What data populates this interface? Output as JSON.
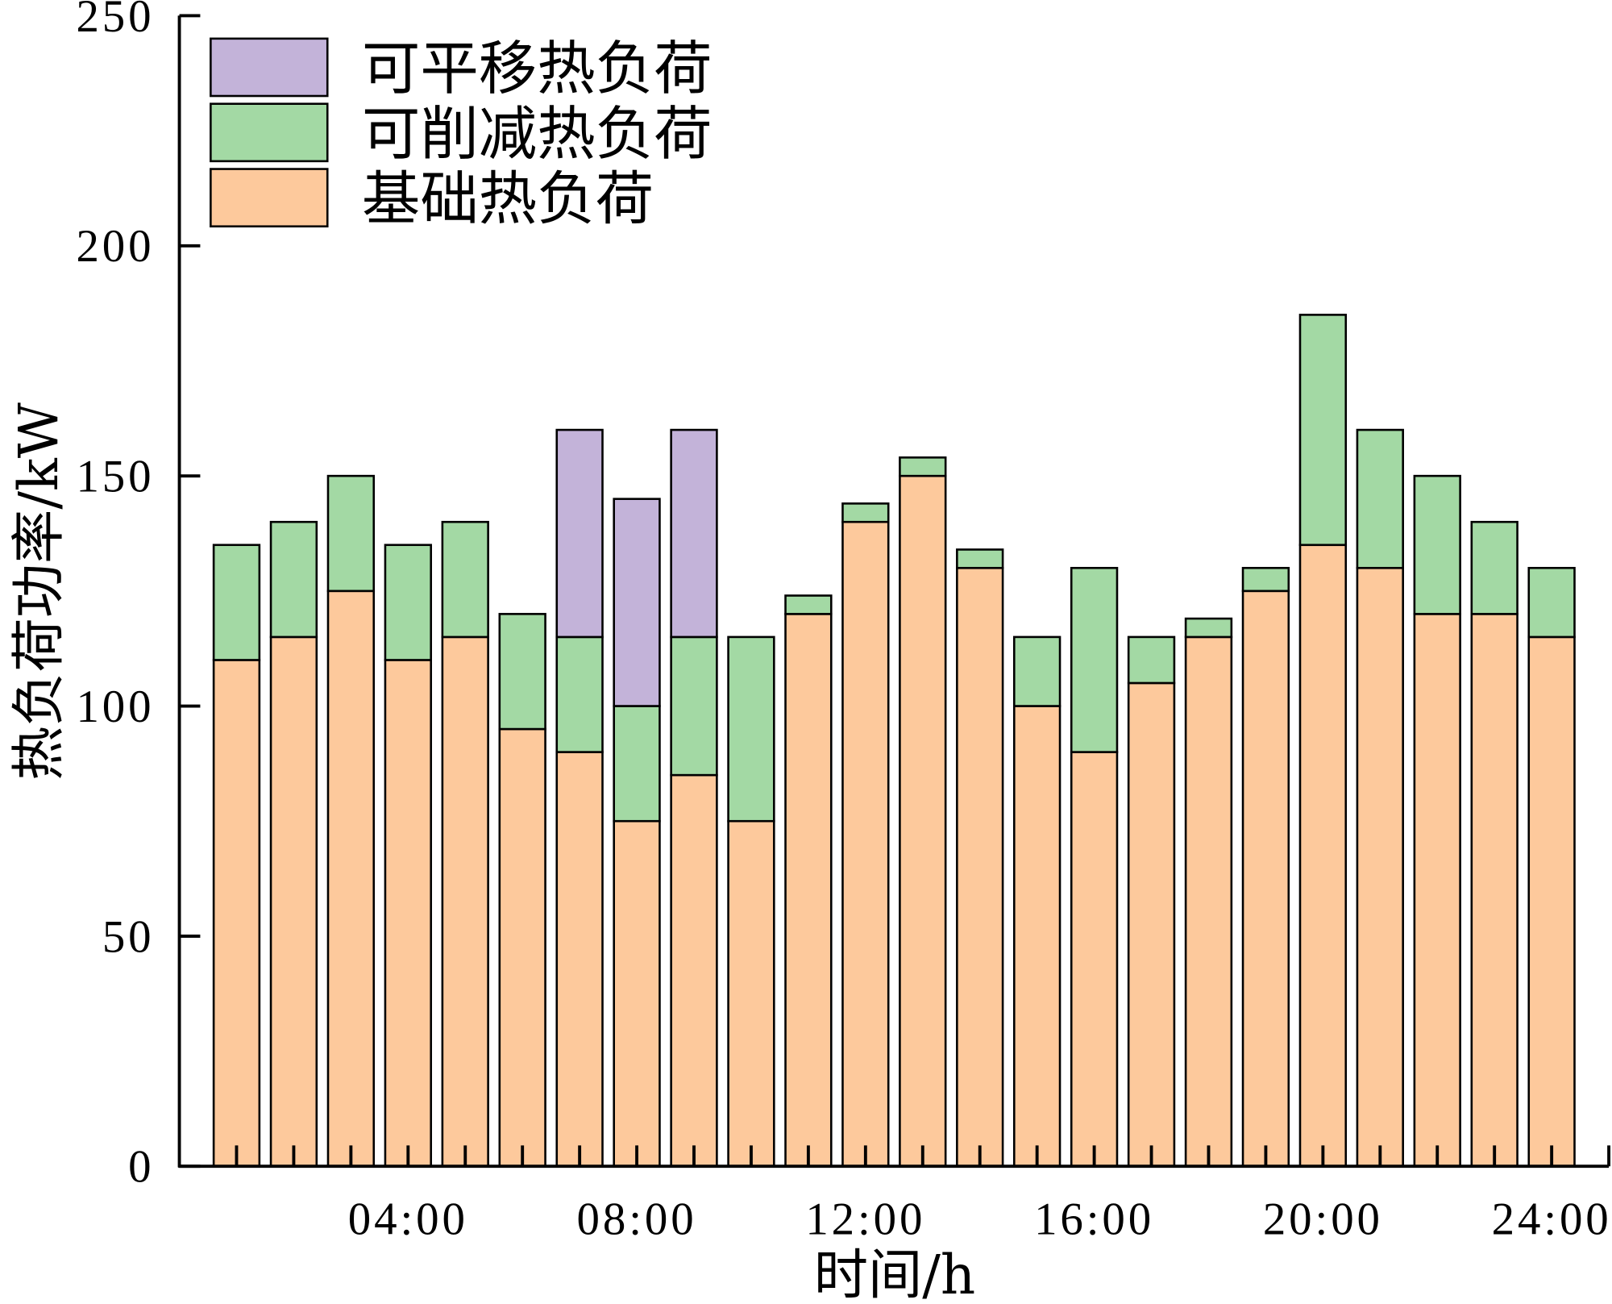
{
  "chart_data": {
    "type": "bar",
    "stacked": true,
    "x": [
      1,
      2,
      3,
      4,
      5,
      6,
      7,
      8,
      9,
      10,
      11,
      12,
      13,
      14,
      15,
      16,
      17,
      18,
      19,
      20,
      21,
      22,
      23,
      24
    ],
    "xlim": [
      0,
      25
    ],
    "ylim": [
      0,
      250
    ],
    "xticks": {
      "values": [
        4,
        8,
        12,
        16,
        20,
        24
      ],
      "labels": [
        "04:00",
        "08:00",
        "12:00",
        "16:00",
        "20:00",
        "24:00"
      ]
    },
    "yticks": {
      "values": [
        0,
        50,
        100,
        150,
        200,
        250
      ],
      "labels": [
        "0",
        "50",
        "100",
        "150",
        "200",
        "250"
      ]
    },
    "xlabel": "时间/h",
    "ylabel": "热负荷功率/kW",
    "grid": false,
    "legend_position": "top-left",
    "series": [
      {
        "name": "基础热负荷",
        "color": "#FDC99C",
        "values": [
          110,
          115,
          125,
          110,
          115,
          95,
          90,
          75,
          85,
          75,
          120,
          140,
          150,
          130,
          100,
          90,
          105,
          115,
          125,
          135,
          130,
          120,
          120,
          115
        ]
      },
      {
        "name": "可削减热负荷",
        "color": "#A3D9A4",
        "values": [
          25,
          25,
          25,
          25,
          25,
          25,
          25,
          25,
          30,
          40,
          4,
          4,
          4,
          4,
          15,
          40,
          10,
          4,
          5,
          50,
          30,
          30,
          20,
          15
        ]
      },
      {
        "name": "可平移热负荷",
        "color": "#C3B3D9",
        "values": [
          0,
          0,
          0,
          0,
          0,
          0,
          45,
          45,
          45,
          0,
          0,
          0,
          0,
          0,
          0,
          0,
          0,
          0,
          0,
          0,
          0,
          0,
          0,
          0
        ]
      }
    ]
  }
}
